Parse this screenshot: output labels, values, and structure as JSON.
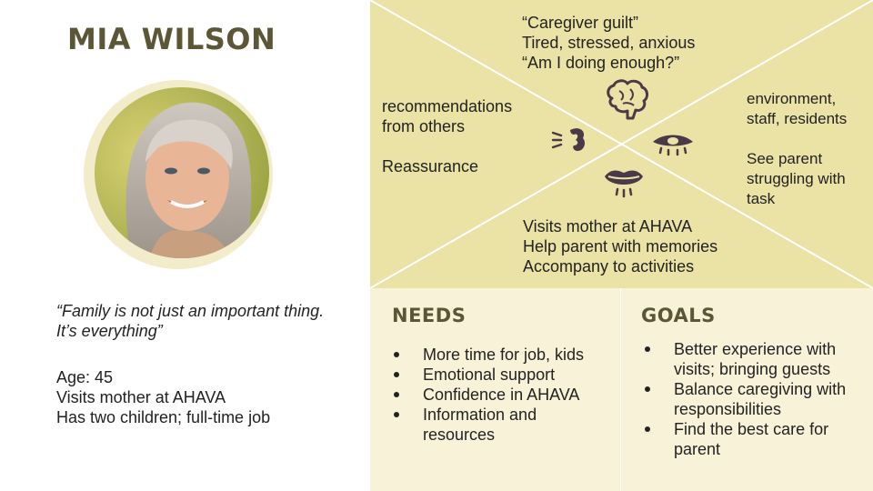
{
  "persona": {
    "name": "MIA WILSON",
    "quote": "“Family is not just an important thing. It’s everything”",
    "facts": [
      "Age: 45",
      "Visits mother at AHAVA",
      "Has two children; full-time job"
    ]
  },
  "empathy_map": {
    "thinks": [
      "“Caregiver guilt”",
      "Tired, stressed, anxious",
      "“Am I doing enough?”"
    ],
    "hears": {
      "lines": [
        "recommendations",
        "from others"
      ],
      "extra": "Reassurance"
    },
    "sees": {
      "lines": [
        "environment,",
        "staff, residents"
      ],
      "extra": [
        "See parent",
        "struggling  with",
        "task"
      ]
    },
    "does": [
      "Visits mother at AHAVA",
      "Help parent with memories",
      "Accompany to activities"
    ],
    "icons": [
      "brain-icon",
      "ear-icon",
      "eye-icon",
      "mouth-icon"
    ]
  },
  "needs": {
    "title": "NEEDS",
    "items": [
      "More time for job, kids",
      "Emotional support",
      "Confidence in AHAVA",
      "Information and resources"
    ]
  },
  "goals": {
    "title": "GOALS",
    "items": [
      "Better experience with visits; bringing guests",
      "Balance caregiving with responsibilities",
      "Find the best care for parent"
    ]
  },
  "colors": {
    "accent_text": "#5a5636",
    "empathy_bg": "#ebe2a6",
    "panel_bg": "#f8f2d9",
    "photo_ring": "#f2eccb",
    "icon": "#4a3a48"
  }
}
